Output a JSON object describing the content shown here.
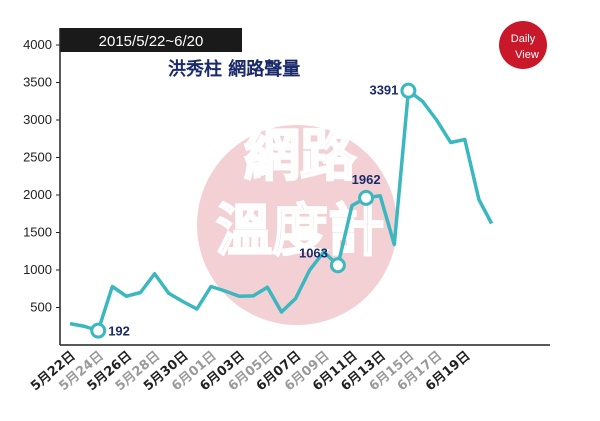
{
  "header": {
    "date_range": "2015/5/22~6/20",
    "title": "洪秀柱 網路聲量"
  },
  "logo": {
    "line1": "Daily",
    "line2": "View"
  },
  "watermark": {
    "line1": "網路",
    "line2": "溫度計"
  },
  "chart_data": {
    "type": "line",
    "ylim": [
      0,
      4000
    ],
    "yticks": [
      "4000",
      "3500",
      "3000",
      "2500",
      "2000",
      "1500",
      "1000",
      "500"
    ],
    "xtick_labels": [
      "5月22日",
      "5月24日",
      "5月26日",
      "5月28日",
      "5月30日",
      "6月01日",
      "6月03日",
      "6月05日",
      "6月07日",
      "6月09日",
      "6月11日",
      "6月13日",
      "6月15日",
      "6月17日",
      "6月19日"
    ],
    "faint_ticks": [
      1,
      3,
      5,
      7,
      9,
      12,
      13
    ],
    "x": [
      "5/22",
      "5/23",
      "5/24",
      "5/25",
      "5/26",
      "5/27",
      "5/28",
      "5/29",
      "5/30",
      "5/31",
      "6/01",
      "6/02",
      "6/03",
      "6/04",
      "6/05",
      "6/06",
      "6/07",
      "6/08",
      "6/09",
      "6/10",
      "6/11",
      "6/12",
      "6/13",
      "6/14",
      "6/15",
      "6/16",
      "6/17",
      "6/18",
      "6/19",
      "6/20"
    ],
    "values": [
      285,
      250,
      192,
      780,
      650,
      700,
      950,
      690,
      580,
      480,
      780,
      720,
      650,
      655,
      770,
      440,
      620,
      1000,
      1240,
      1063,
      1860,
      1962,
      1990,
      1340,
      3391,
      3250,
      3000,
      2700,
      2740,
      1940
    ],
    "values_tail_note": "",
    "extra_point": 1620,
    "markers": [
      {
        "label": "192",
        "index": 2
      },
      {
        "label": "1063",
        "index": 19
      },
      {
        "label": "1962",
        "index": 21
      },
      {
        "label": "3391",
        "index": 24
      }
    ],
    "colors": {
      "line": "#3bb8bf",
      "marker_fill": "#ffffff",
      "header_bg": "#1a1a1a",
      "watermark": "#e8aab0",
      "axis": "#222222"
    }
  }
}
